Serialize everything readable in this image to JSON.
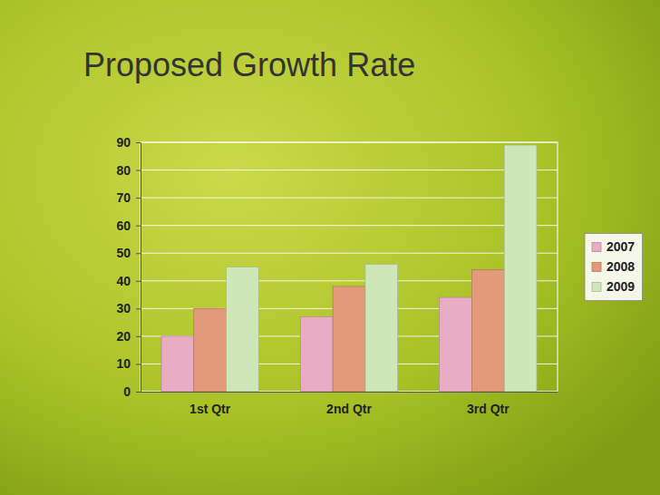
{
  "chart_data": {
    "type": "bar",
    "title": "Proposed Growth Rate",
    "categories": [
      "1st Qtr",
      "2nd Qtr",
      "3rd Qtr"
    ],
    "series": [
      {
        "name": "2007",
        "color": "#e8acc4",
        "values": [
          20,
          27,
          34
        ]
      },
      {
        "name": "2008",
        "color": "#e39a7a",
        "values": [
          30,
          38,
          44
        ]
      },
      {
        "name": "2009",
        "color": "#cfe6b8",
        "values": [
          45,
          46,
          89
        ]
      }
    ],
    "ylim": [
      0,
      90
    ],
    "yticks": [
      0,
      10,
      20,
      30,
      40,
      50,
      60,
      70,
      80,
      90
    ],
    "grid": true,
    "legend": "right"
  }
}
